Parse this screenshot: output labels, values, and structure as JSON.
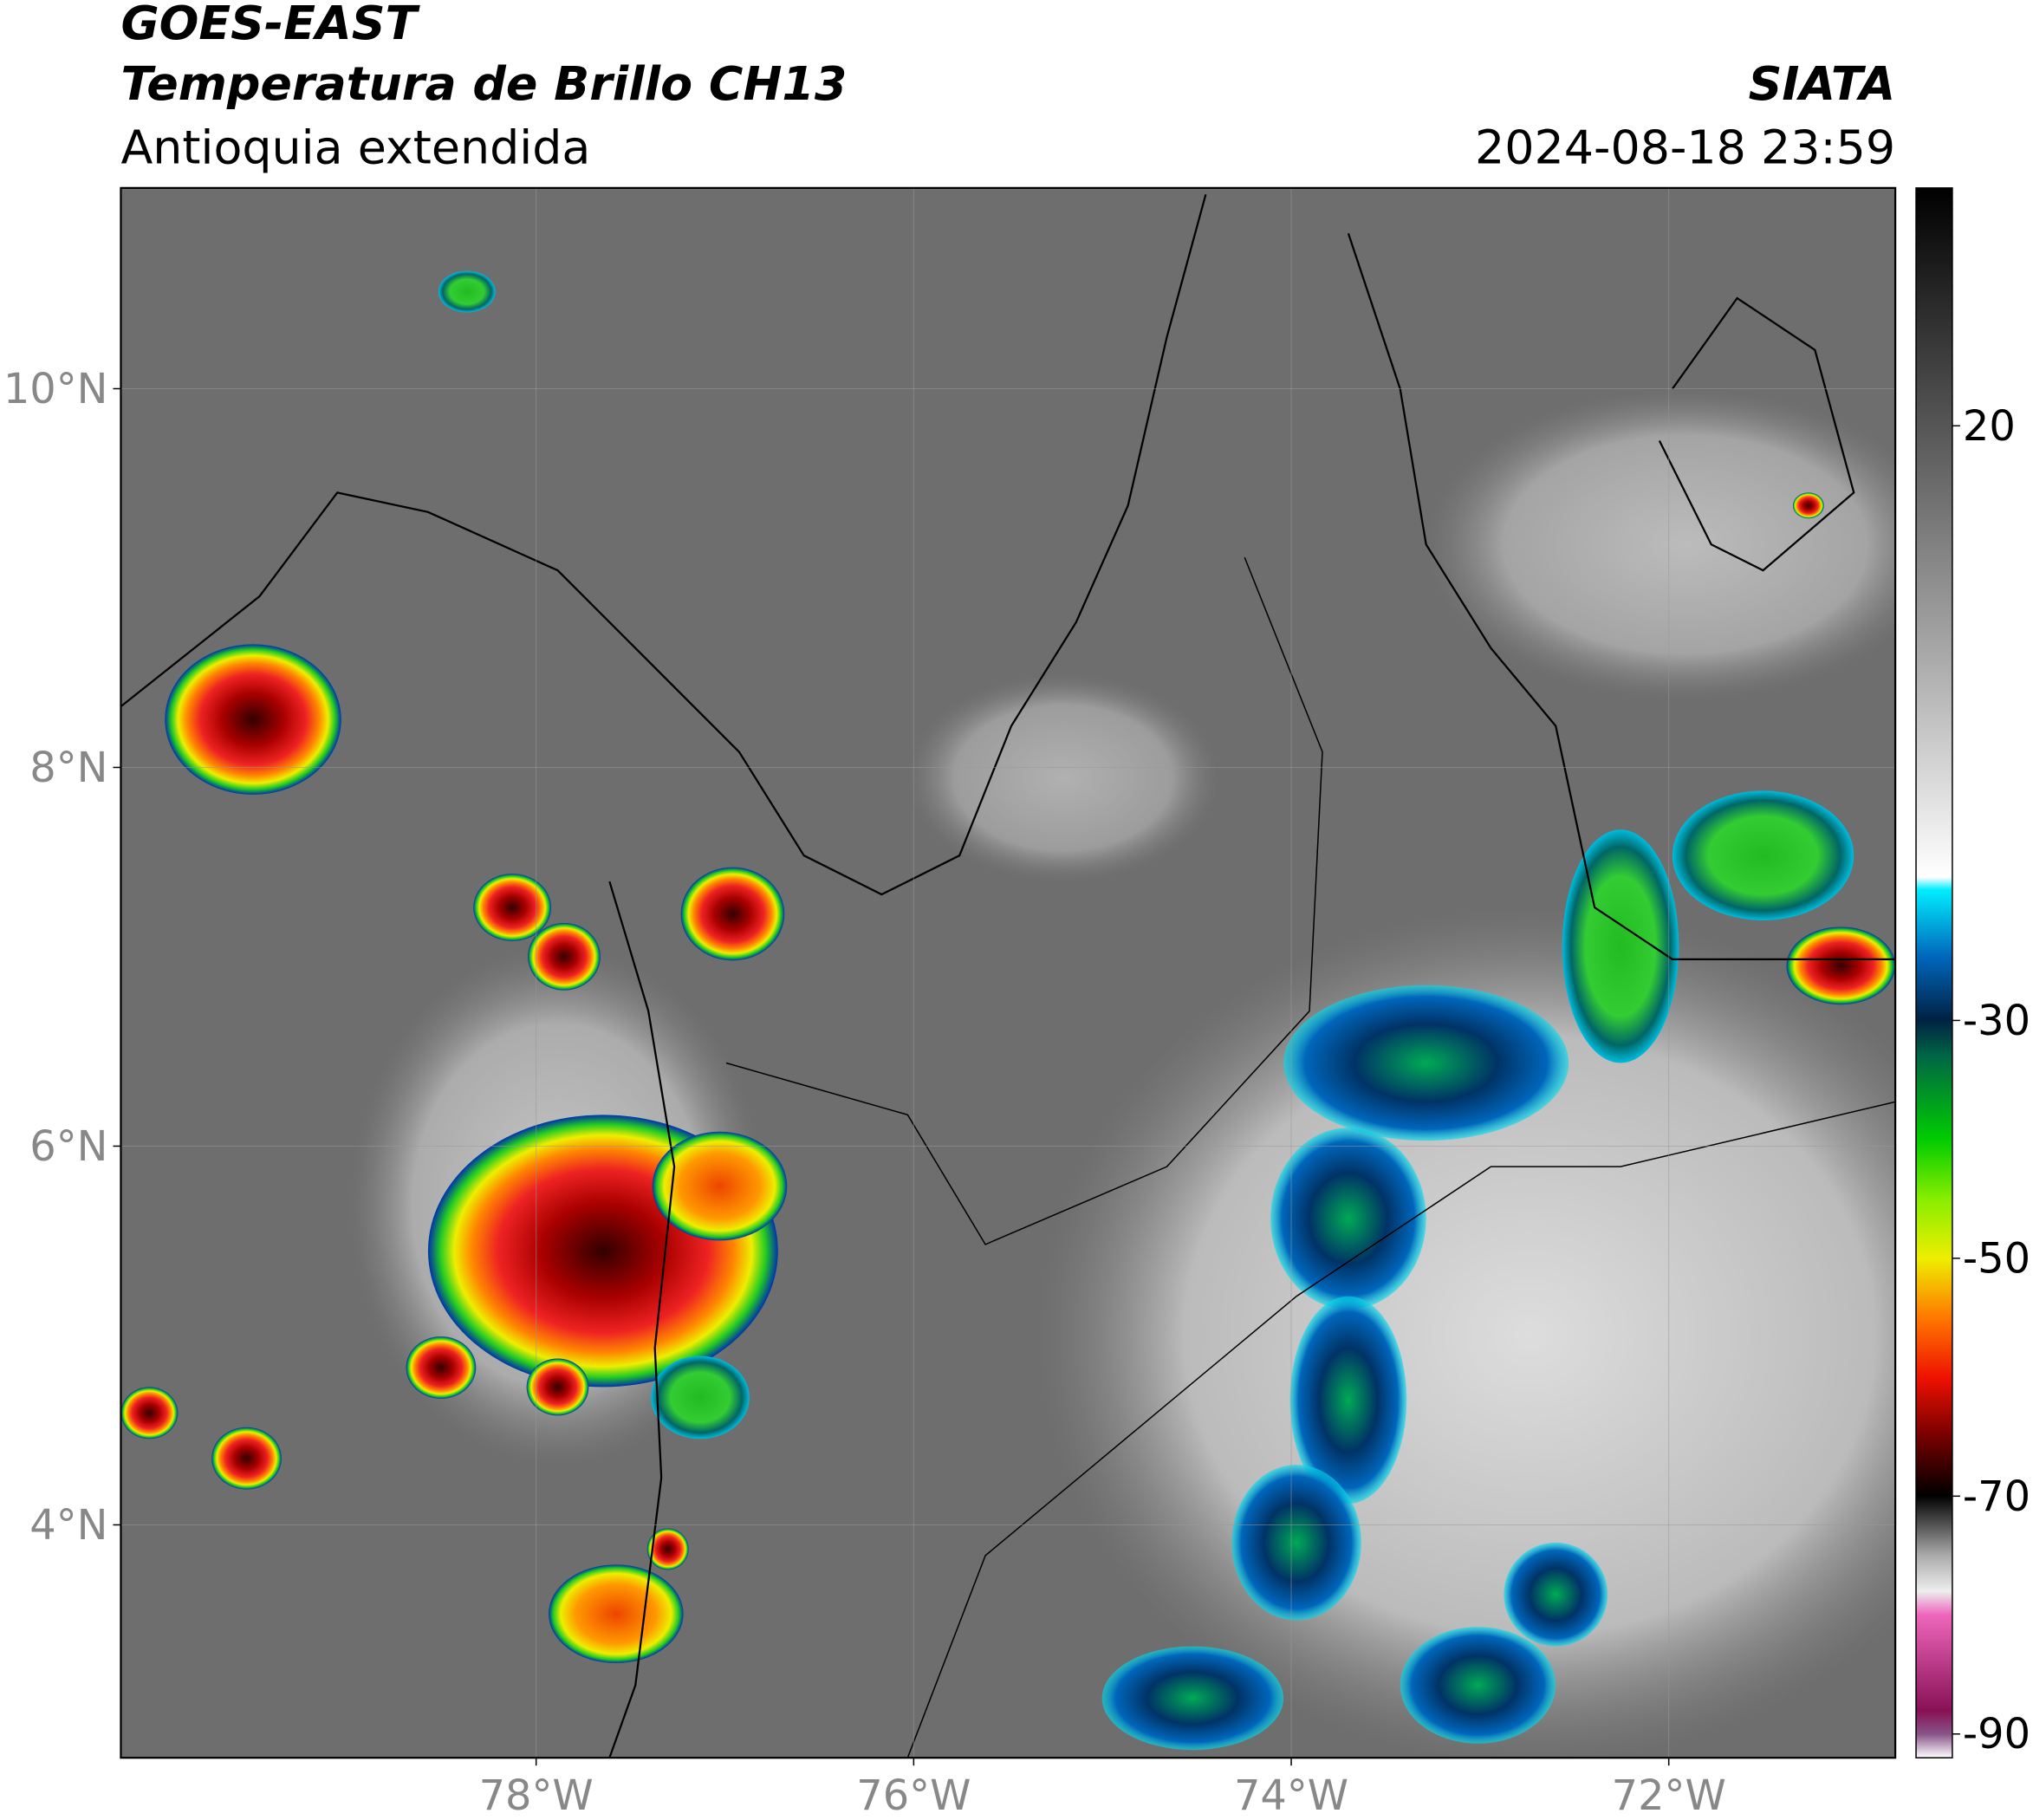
{
  "header": {
    "satellite": "GOES-EAST",
    "product": "Temperatura de Brillo CH13",
    "region": "Antioquia extendida",
    "agency": "SIATA",
    "datetime": "2024-08-18 23:59"
  },
  "map": {
    "xlim": [
      -80.2,
      -70.8
    ],
    "ylim": [
      2.77,
      11.06
    ],
    "xticks": [
      {
        "value": -78,
        "label": "78°W"
      },
      {
        "value": -76,
        "label": "76°W"
      },
      {
        "value": -74,
        "label": "74°W"
      },
      {
        "value": -72,
        "label": "72°W"
      }
    ],
    "yticks": [
      {
        "value": 4,
        "label": "4°N"
      },
      {
        "value": 6,
        "label": "6°N"
      },
      {
        "value": 8,
        "label": "8°N"
      },
      {
        "value": 10,
        "label": "10°N"
      }
    ],
    "grid": true
  },
  "colorbar": {
    "clim": [
      -92,
      40
    ],
    "ticks": [
      20,
      -30,
      -50,
      -70,
      -90
    ]
  }
}
